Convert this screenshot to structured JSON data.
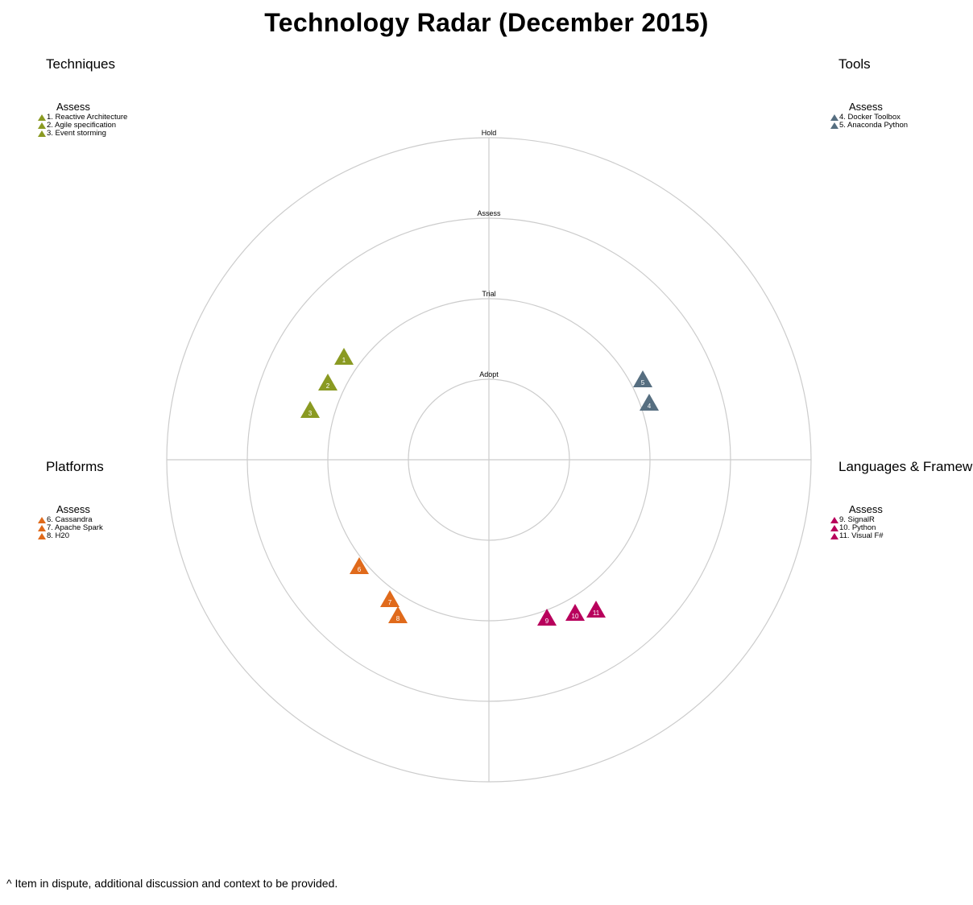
{
  "title": "Technology Radar (December 2015)",
  "rings": [
    "Adopt",
    "Trial",
    "Assess",
    "Hold"
  ],
  "colors": {
    "techniques": "#8a9a22",
    "tools": "#566e80",
    "platforms": "#e06a1b",
    "languages": "#b8005c",
    "grid": "#cccccc"
  },
  "quadrants": {
    "techniques": {
      "name": "Techniques",
      "ring_heading": "Assess",
      "items": [
        "1. Reactive Architecture",
        "2. Agile specification",
        "3. Event storming"
      ]
    },
    "tools": {
      "name": "Tools",
      "ring_heading": "Assess",
      "items": [
        "4. Docker Toolbox",
        "5. Anaconda Python"
      ]
    },
    "platforms": {
      "name": "Platforms",
      "ring_heading": "Assess",
      "items": [
        "6. Cassandra",
        "7. Apache Spark",
        "8. H20"
      ]
    },
    "languages": {
      "name": "Languages & Frameworks",
      "ring_heading": "Assess",
      "items": [
        "9. SignalR",
        "10. Python",
        "11. Visual F#"
      ]
    }
  },
  "blips": [
    {
      "num": "1",
      "quadrant": "techniques",
      "ring": "Assess"
    },
    {
      "num": "2",
      "quadrant": "techniques",
      "ring": "Assess"
    },
    {
      "num": "3",
      "quadrant": "techniques",
      "ring": "Assess"
    },
    {
      "num": "4",
      "quadrant": "tools",
      "ring": "Assess"
    },
    {
      "num": "5",
      "quadrant": "tools",
      "ring": "Assess"
    },
    {
      "num": "6",
      "quadrant": "platforms",
      "ring": "Assess"
    },
    {
      "num": "7",
      "quadrant": "platforms",
      "ring": "Assess"
    },
    {
      "num": "8",
      "quadrant": "platforms",
      "ring": "Assess"
    },
    {
      "num": "9",
      "quadrant": "languages",
      "ring": "Assess"
    },
    {
      "num": "10",
      "quadrant": "languages",
      "ring": "Assess"
    },
    {
      "num": "11",
      "quadrant": "languages",
      "ring": "Assess"
    }
  ],
  "footnote": "^ Item in dispute, additional discussion and context to be provided."
}
